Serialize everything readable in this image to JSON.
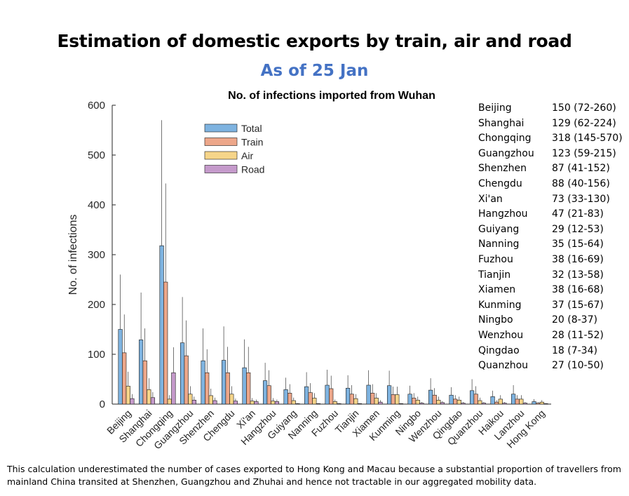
{
  "header": {
    "title": "Estimation of domestic exports by train, air and road",
    "subtitle": "As of 25 Jan"
  },
  "colors": {
    "total": "#7EB3E0",
    "train": "#EDA78A",
    "air": "#F6D58A",
    "road": "#C59ACB",
    "subtitle": "#4472C4"
  },
  "chart_data": {
    "type": "bar",
    "title": "No. of infections imported from Wuhan",
    "xlabel": "",
    "ylabel": "No. of infections",
    "ylim": [
      0,
      600
    ],
    "yticks": [
      0,
      100,
      200,
      300,
      400,
      500,
      600
    ],
    "grid": false,
    "legend_position": "top-left",
    "categories": [
      "Beijing",
      "Shanghai",
      "Chongqing",
      "Guangzhou",
      "Shenzhen",
      "Chengdu",
      "Xi'an",
      "Hangzhou",
      "Guiyang",
      "Nanning",
      "Fuzhou",
      "Tianjin",
      "Xiamen",
      "Kunming",
      "Ningbo",
      "Wenzhou",
      "Qingdao",
      "Quanzhou",
      "Haikou",
      "Lanzhou",
      "Hong Kong"
    ],
    "series": [
      {
        "name": "Total",
        "values": [
          150,
          129,
          318,
          123,
          87,
          88,
          73,
          47,
          29,
          35,
          38,
          32,
          38,
          37,
          20,
          28,
          18,
          27,
          15,
          20,
          5
        ],
        "err_high": [
          260,
          224,
          570,
          215,
          152,
          156,
          130,
          83,
          53,
          64,
          69,
          58,
          68,
          67,
          37,
          52,
          34,
          50,
          27,
          38,
          10
        ]
      },
      {
        "name": "Train",
        "values": [
          103,
          87,
          245,
          97,
          63,
          63,
          63,
          37,
          22,
          23,
          31,
          20,
          22,
          19,
          12,
          18,
          10,
          20,
          4,
          10,
          2
        ],
        "err_high": [
          180,
          152,
          443,
          168,
          110,
          115,
          115,
          68,
          40,
          42,
          57,
          38,
          40,
          35,
          22,
          32,
          18,
          36,
          8,
          18,
          4
        ]
      },
      {
        "name": "Air",
        "values": [
          36,
          29,
          10,
          20,
          17,
          20,
          6,
          6,
          7,
          12,
          5,
          11,
          12,
          19,
          8,
          8,
          8,
          7,
          10,
          10,
          4
        ],
        "err_high": [
          65,
          52,
          18,
          36,
          31,
          36,
          12,
          12,
          13,
          22,
          9,
          20,
          22,
          35,
          15,
          15,
          15,
          13,
          18,
          18,
          8
        ]
      },
      {
        "name": "Road",
        "values": [
          11,
          13,
          63,
          8,
          7,
          6,
          5,
          5,
          1,
          1,
          1,
          1,
          4,
          1,
          2,
          3,
          2,
          2,
          2,
          2,
          1
        ],
        "err_high": [
          20,
          24,
          114,
          15,
          13,
          11,
          9,
          9,
          2,
          2,
          2,
          2,
          8,
          2,
          4,
          6,
          4,
          4,
          4,
          4,
          2
        ]
      }
    ]
  },
  "estimates": [
    {
      "city": "Beijing",
      "value": "150 (72-260)"
    },
    {
      "city": "Shanghai",
      "value": "129 (62-224)"
    },
    {
      "city": "Chongqing",
      "value": "318 (145-570)"
    },
    {
      "city": "Guangzhou",
      "value": "123 (59-215)"
    },
    {
      "city": "Shenzhen",
      "value": "87 (41-152)"
    },
    {
      "city": "Chengdu",
      "value": "88 (40-156)"
    },
    {
      "city": "Xi'an",
      "value": "73 (33-130)"
    },
    {
      "city": "Hangzhou",
      "value": "47 (21-83)"
    },
    {
      "city": "Guiyang",
      "value": "29 (12-53)"
    },
    {
      "city": "Nanning",
      "value": "35 (15-64)"
    },
    {
      "city": "Fuzhou",
      "value": "38 (16-69)"
    },
    {
      "city": "Tianjin",
      "value": "32 (13-58)"
    },
    {
      "city": "Xiamen",
      "value": "38 (16-68)"
    },
    {
      "city": "Kunming",
      "value": "37 (15-67)"
    },
    {
      "city": "Ningbo",
      "value": "20 (8-37)"
    },
    {
      "city": "Wenzhou",
      "value": "28 (11-52)"
    },
    {
      "city": "Qingdao",
      "value": "18 (7-34)"
    },
    {
      "city": "Quanzhou",
      "value": "27 (10-50)"
    }
  ],
  "footnote": "This calculation underestimated the number of cases exported to Hong Kong and Macau because a substantial proportion of travellers from mainland China transited at Shenzhen, Guangzhou and Zhuhai and hence not tractable in our aggregated mobility data."
}
